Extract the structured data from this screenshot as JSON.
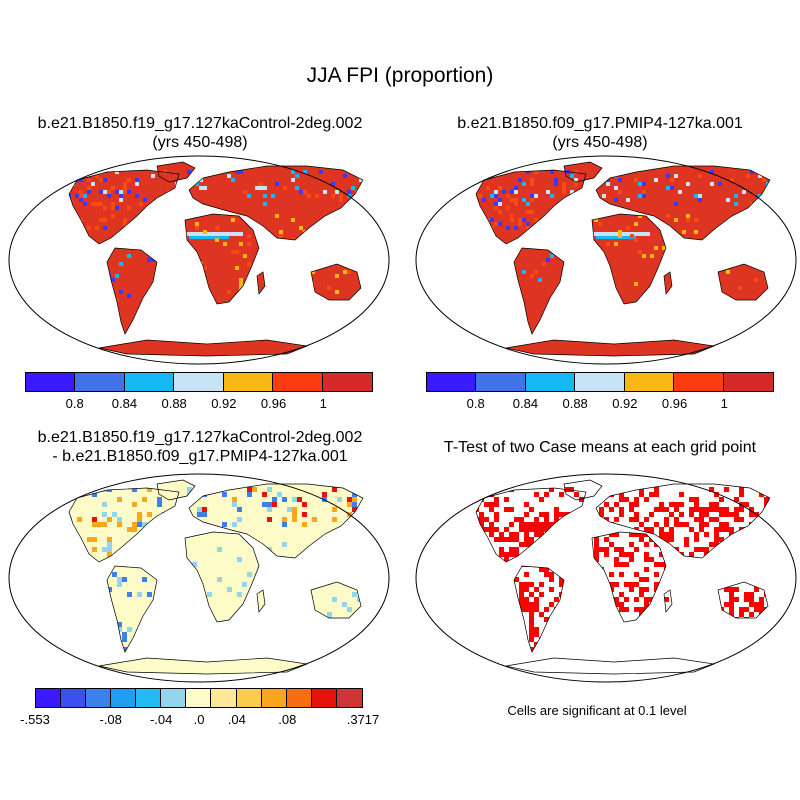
{
  "title": "JJA FPI (proportion)",
  "panels": {
    "top_left": {
      "title_line1": "b.e21.B1850.f19_g17.127kaControl-2deg.002",
      "title_line2": "(yrs 450-498)"
    },
    "top_right": {
      "title_line1": "b.e21.B1850.f09_g17.PMIP4-127ka.001",
      "title_line2": "(yrs 450-498)"
    },
    "bottom_left": {
      "title_line1": "b.e21.B1850.f19_g17.127kaControl-2deg.002",
      "title_line2": "- b.e21.B1850.f09_g17.PMIP4-127ka.001"
    },
    "bottom_right": {
      "title_line1": "T-Test of two Case means at each grid point"
    }
  },
  "colorbar_fpi": {
    "colors": [
      "#3a1aff",
      "#3f73e6",
      "#17b6f5",
      "#c6e4f5",
      "#fbb716",
      "#fa3c0e",
      "#d42a2a"
    ],
    "tick_labels": [
      "0.8",
      "0.84",
      "0.88",
      "0.92",
      "0.96",
      "1"
    ]
  },
  "colorbar_diff": {
    "colors": [
      "#3a1aff",
      "#3a50f0",
      "#3d80ea",
      "#209ef2",
      "#22bcf1",
      "#95d4ee",
      "#fdfcc8",
      "#fde79a",
      "#fccd4c",
      "#faa61c",
      "#f76e10",
      "#e4130e",
      "#d03434"
    ],
    "tick_labels": [
      "-.553",
      "-.08",
      "-.04",
      ".0",
      ".04",
      ".08",
      ".3717"
    ]
  },
  "significance_note": "Cells are significant at 0.1 level",
  "map_colors": {
    "fpi_land": "#dd3522",
    "fpi_patch": "#fa4a10",
    "fpi_low": "#3a3aff",
    "fpi_mid": "#17b6f5",
    "fpi_pale": "#c6e4f5",
    "fpi_orange": "#fbb716",
    "diff_land": "#fdfcc8",
    "diff_blue": "#95d4ee",
    "diff_dark_blue": "#3d80ea",
    "diff_red": "#e4130e",
    "diff_orange": "#faa61c",
    "sig_red": "#ff0000"
  }
}
